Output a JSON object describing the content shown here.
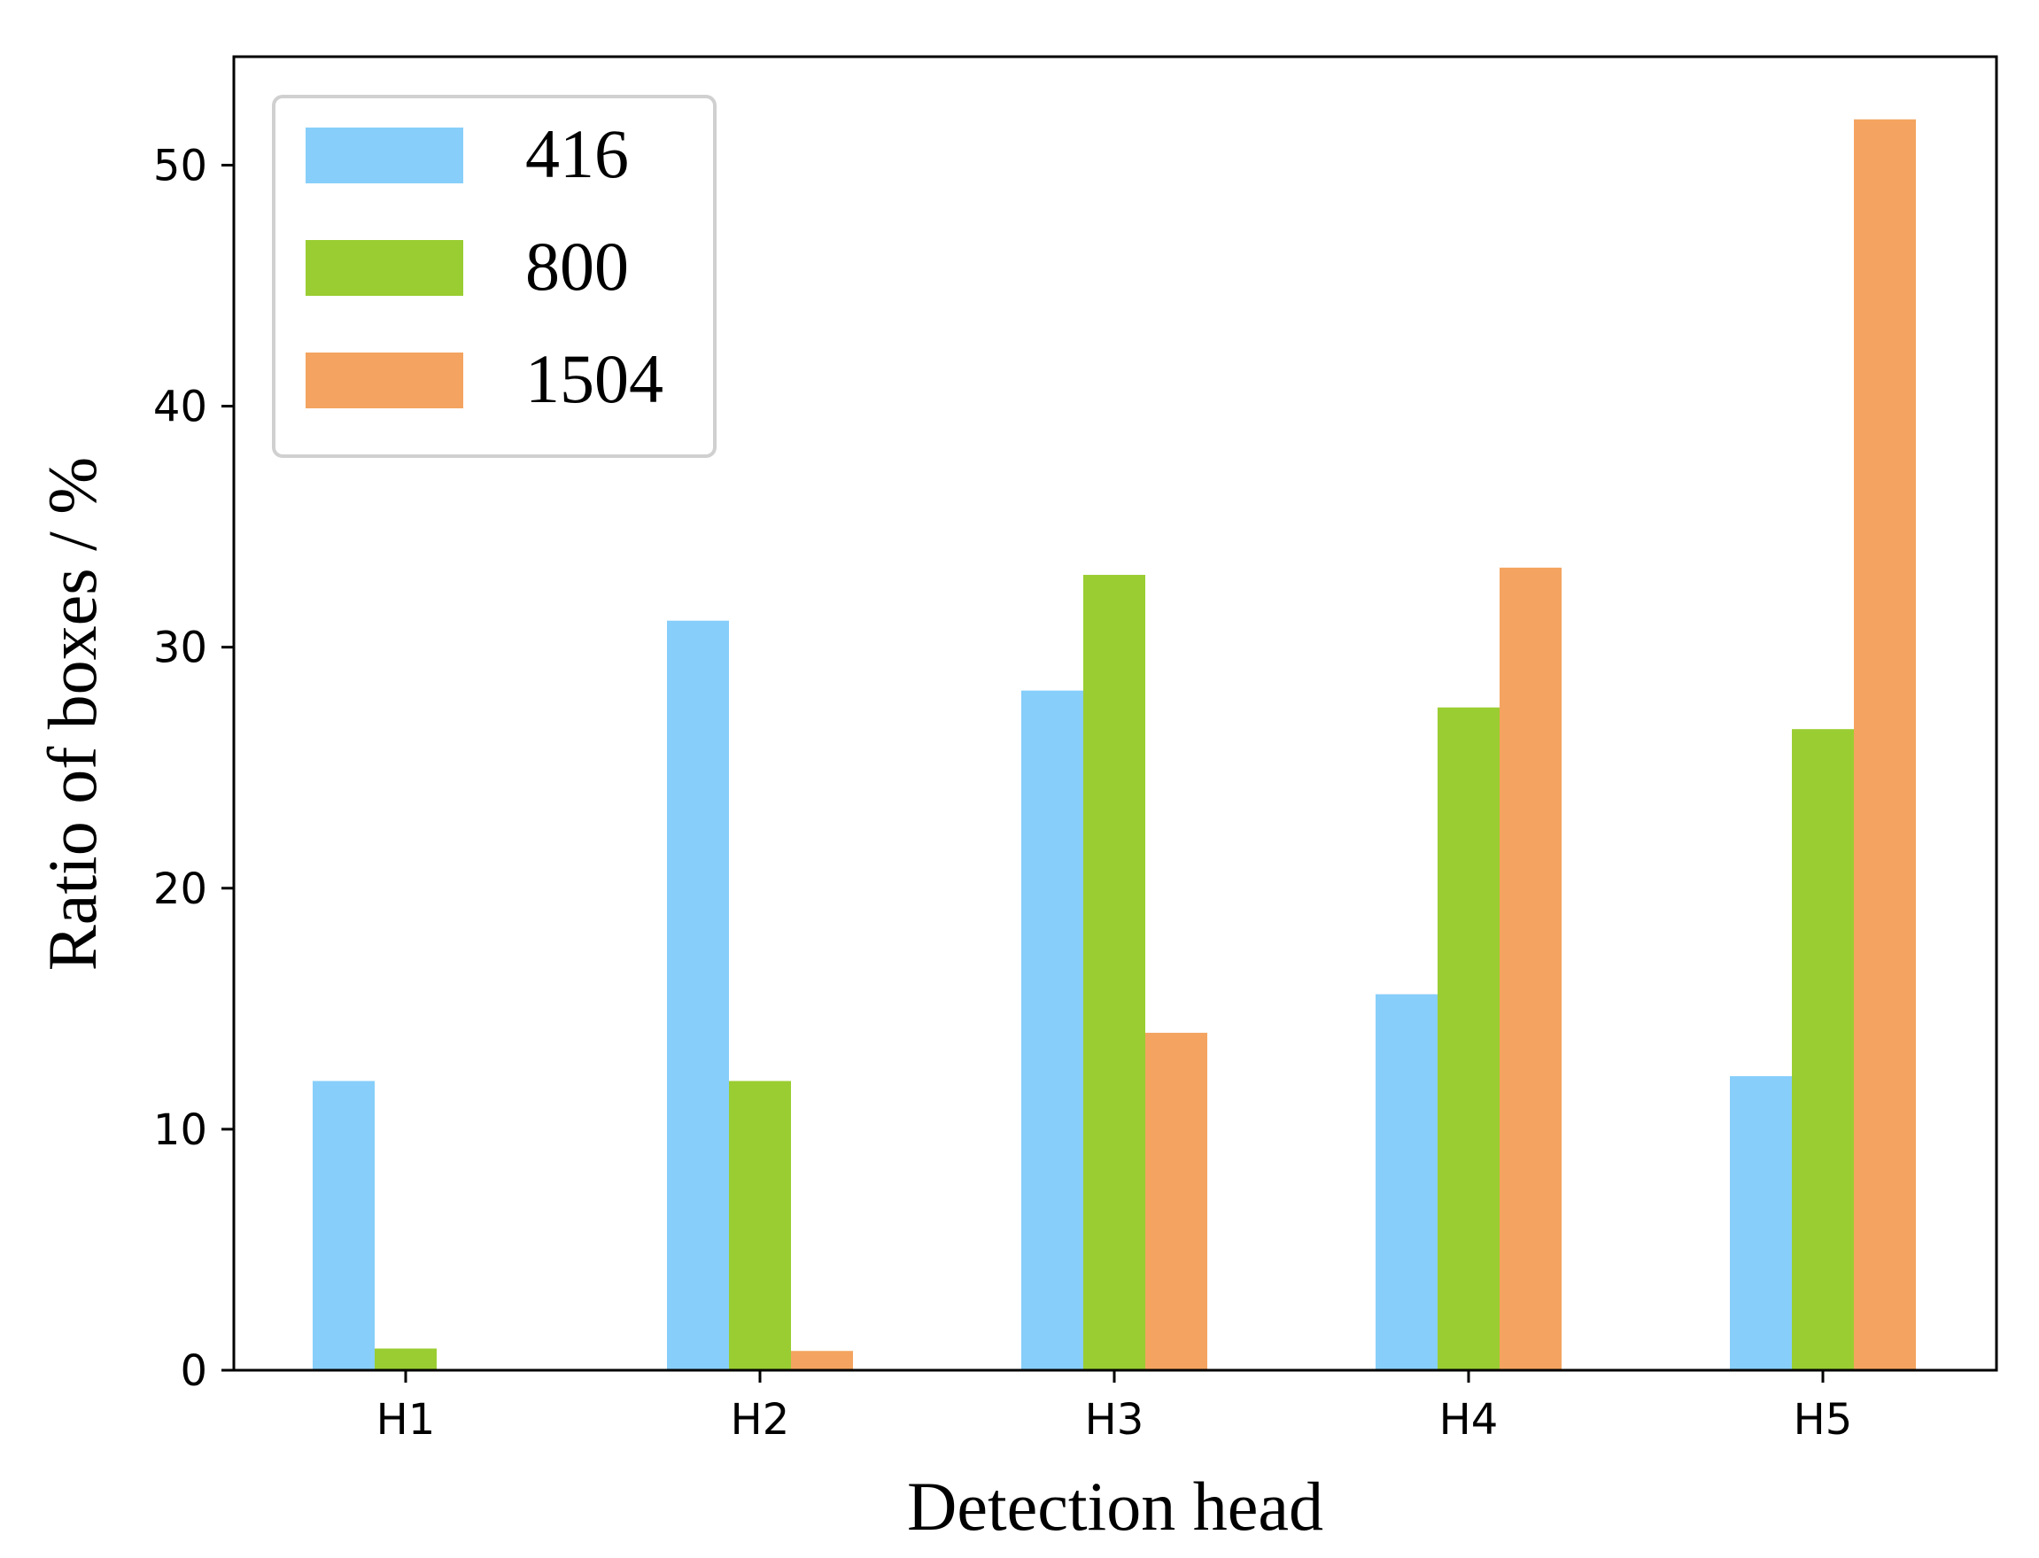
{
  "chart_data": {
    "type": "bar",
    "xlabel": "Detection head",
    "ylabel": "Ratio of boxes / %",
    "categories": [
      "H1",
      "H2",
      "H3",
      "H4",
      "H5"
    ],
    "series": [
      {
        "name": "416",
        "color": "#87CEFA",
        "values": [
          12.0,
          31.1,
          28.2,
          15.6,
          12.2
        ]
      },
      {
        "name": "800",
        "color": "#9ACD32",
        "values": [
          0.9,
          12.0,
          33.0,
          27.5,
          26.6
        ]
      },
      {
        "name": "1504",
        "color": "#F4A460",
        "values": [
          0.0,
          0.8,
          14.0,
          33.3,
          51.9
        ]
      }
    ],
    "ylim": [
      0,
      54.5
    ],
    "yticks": [
      0,
      10,
      20,
      30,
      40,
      50
    ],
    "grid": false,
    "legend_position": "top-left"
  }
}
